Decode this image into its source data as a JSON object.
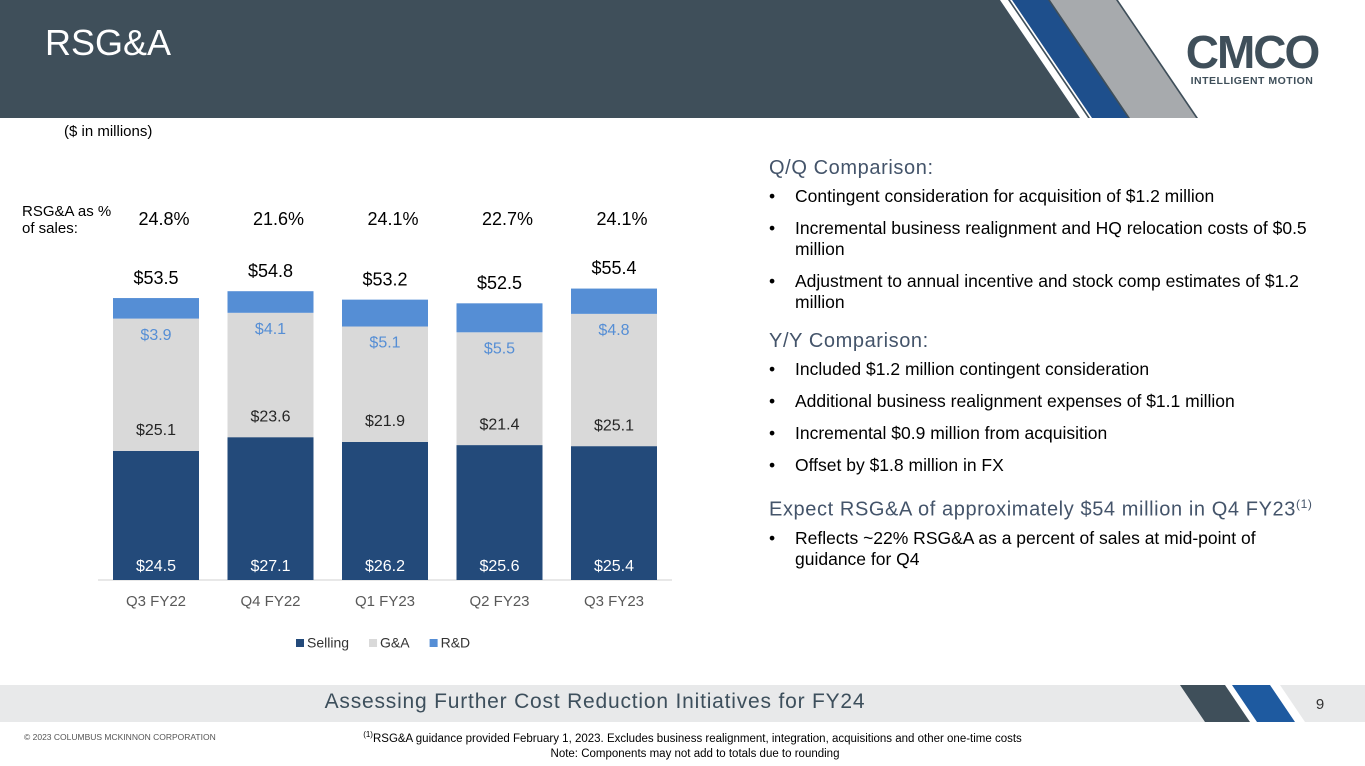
{
  "header": {
    "title": "RSG&A",
    "logo": {
      "name": "CMCO",
      "tagline": "INTELLIGENT MOTION"
    }
  },
  "chart_data": {
    "type": "bar",
    "stacked": true,
    "unit_note": "($ in millions)",
    "categories": [
      "Q3 FY22",
      "Q4 FY22",
      "Q1 FY23",
      "Q2 FY23",
      "Q3 FY23"
    ],
    "series": [
      {
        "name": "Selling",
        "color": "#234a7a",
        "label_color": "#ffffff",
        "values": [
          24.5,
          27.1,
          26.2,
          25.6,
          25.4
        ],
        "value_labels": [
          "$24.5",
          "$27.1",
          "$26.2",
          "$25.6",
          "$25.4"
        ]
      },
      {
        "name": "G&A",
        "color": "#d9d9d9",
        "label_color": "#262626",
        "values": [
          25.1,
          23.6,
          21.9,
          21.4,
          25.1
        ],
        "value_labels": [
          "$25.1",
          "$23.6",
          "$21.9",
          "$21.4",
          "$25.1"
        ]
      },
      {
        "name": "R&D",
        "color": "#558ed5",
        "label_color": "#558ed5",
        "values": [
          3.9,
          4.1,
          5.1,
          5.5,
          4.8
        ],
        "value_labels": [
          "$3.9",
          "$4.1",
          "$5.1",
          "$5.5",
          "$4.8"
        ]
      }
    ],
    "totals": {
      "values": [
        53.5,
        54.8,
        53.2,
        52.5,
        55.4
      ],
      "value_labels": [
        "$53.5",
        "$54.8",
        "$53.2",
        "$52.5",
        "$55.4"
      ]
    },
    "percent_of_sales": {
      "label": "RSG&A as % of sales:",
      "values": [
        24.8,
        21.6,
        24.1,
        22.7,
        24.1
      ],
      "value_labels": [
        "24.8%",
        "21.6%",
        "24.1%",
        "22.7%",
        "24.1%"
      ]
    }
  },
  "commentary": {
    "sections": [
      {
        "heading": "Q/Q Comparison:",
        "bullets": [
          "Contingent consideration for acquisition of $1.2 million",
          "Incremental business realignment and HQ relocation costs of $0.5 million",
          "Adjustment to annual incentive and stock comp estimates of $1.2 million"
        ]
      },
      {
        "heading": "Y/Y Comparison:",
        "bullets": [
          "Included $1.2 million contingent consideration",
          "Additional business realignment expenses of $1.1 million",
          "Incremental $0.9 million from acquisition",
          "Offset by $1.8 million in FX"
        ]
      },
      {
        "heading": "Expect RSG&A of approximately $54 million in Q4 FY23",
        "heading_note": "(1)",
        "bullets": [
          "Reflects ~22% RSG&A as a percent of sales at mid-point of guidance for Q4"
        ]
      }
    ]
  },
  "footer": {
    "banner": "Assessing Further Cost Reduction Initiatives for FY24",
    "page": "9",
    "copyright": "© 2023 COLUMBUS MCKINNON CORPORATION",
    "footnote_mark": "(1)",
    "footnote": "RSG&A guidance provided February 1, 2023. Excludes business realignment, integration, acquisitions and other one-time costs",
    "note": "Note: Components may not add to totals due to rounding"
  }
}
